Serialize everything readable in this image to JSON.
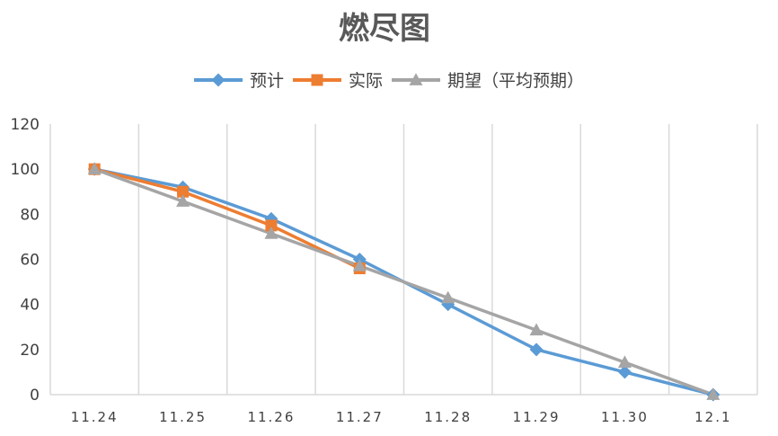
{
  "chart_data": {
    "type": "line",
    "title": "燃尽图",
    "xlabel": "",
    "ylabel": "",
    "categories": [
      "11.24",
      "11.25",
      "11.26",
      "11.27",
      "11.28",
      "11.29",
      "11.30",
      "12.1"
    ],
    "ylim": [
      0,
      120
    ],
    "yticks": [
      "0",
      "20",
      "40",
      "60",
      "80",
      "100",
      "120"
    ],
    "grid": "vertical",
    "legend_position": "top",
    "series": [
      {
        "name": "预计",
        "color": "#5B9BD5",
        "marker": "diamond",
        "values": [
          100,
          92,
          78,
          60,
          40,
          20,
          10,
          0
        ]
      },
      {
        "name": "实际",
        "color": "#ED7D31",
        "marker": "square",
        "values": [
          100,
          90,
          75,
          56,
          null,
          null,
          null,
          null
        ]
      },
      {
        "name": "期望（平均预期）",
        "color": "#A5A5A5",
        "marker": "triangle",
        "values": [
          100,
          85.7,
          71.4,
          57.1,
          42.9,
          28.6,
          14.3,
          0
        ]
      }
    ]
  }
}
